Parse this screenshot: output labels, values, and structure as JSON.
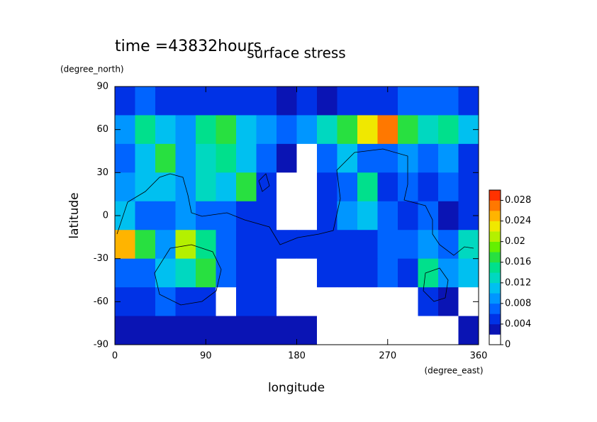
{
  "chart_data": {
    "type": "contour",
    "title": "surface stress",
    "subtitle": "time =43832hours",
    "x_label": "longitude",
    "x_unit": "(degree_east)",
    "y_label": "latitude",
    "y_unit": "(degree_north)",
    "xlim": [
      0,
      360
    ],
    "xticks": [
      0,
      90,
      180,
      270,
      360
    ],
    "ylim": [
      -90,
      90
    ],
    "yticks": [
      -90,
      -60,
      -30,
      0,
      30,
      60,
      90
    ],
    "x": [
      10,
      30,
      50,
      70,
      90,
      110,
      130,
      150,
      170,
      190,
      210,
      230,
      250,
      270,
      290,
      310,
      330,
      350
    ],
    "y": [
      80,
      60,
      40,
      20,
      0,
      -20,
      -40,
      -60,
      -80
    ],
    "z": [
      [
        0.005,
        0.006,
        0.005,
        0.005,
        0.004,
        0.005,
        0.004,
        0.004,
        0.003,
        0.004,
        0.003,
        0.004,
        0.005,
        0.005,
        0.006,
        0.006,
        0.006,
        0.005
      ],
      [
        0.008,
        0.014,
        0.01,
        0.008,
        0.014,
        0.016,
        0.01,
        0.008,
        0.006,
        0.008,
        0.012,
        0.016,
        0.022,
        0.026,
        0.016,
        0.012,
        0.014,
        0.01
      ],
      [
        0.006,
        0.01,
        0.016,
        0.008,
        0.012,
        0.014,
        0.01,
        0.006,
        0.003,
        0.001,
        0.006,
        0.01,
        0.006,
        0.006,
        0.008,
        0.006,
        0.008,
        0.005
      ],
      [
        0.008,
        0.01,
        0.01,
        0.008,
        0.012,
        0.01,
        0.016,
        0.004,
        0.001,
        0.001,
        0.004,
        0.006,
        0.014,
        0.004,
        0.006,
        0.004,
        0.006,
        0.004
      ],
      [
        0.01,
        0.006,
        0.006,
        0.008,
        0.006,
        0.006,
        0.004,
        0.004,
        0.001,
        0.001,
        0.004,
        0.008,
        0.01,
        0.006,
        0.004,
        0.006,
        0.002,
        0.004
      ],
      [
        0.024,
        0.016,
        0.008,
        0.02,
        0.014,
        0.006,
        0.004,
        0.004,
        0.004,
        0.004,
        0.004,
        0.004,
        0.004,
        0.006,
        0.006,
        0.008,
        0.006,
        0.012
      ],
      [
        0.006,
        0.006,
        0.01,
        0.012,
        0.016,
        0.006,
        0.004,
        0.004,
        0.001,
        0.001,
        0.004,
        0.004,
        0.004,
        0.006,
        0.004,
        0.014,
        0.008,
        0.01
      ],
      [
        0.005,
        0.004,
        0.006,
        0.004,
        0.004,
        0.001,
        0.004,
        0.004,
        0.001,
        0.001,
        0.001,
        0.001,
        0.001,
        0.001,
        0.001,
        0.004,
        0.003,
        0.001
      ],
      [
        0.003,
        0.003,
        0.003,
        0.003,
        0.003,
        0.003,
        0.003,
        0.003,
        0.003,
        0.003,
        0.001,
        0.001,
        0.001,
        0.001,
        0.001,
        0.001,
        0.001,
        0.003
      ]
    ],
    "clim": [
      0,
      0.03
    ],
    "cticks": [
      0,
      0.004,
      0.008,
      0.012,
      0.016,
      0.02,
      0.024,
      0.028
    ],
    "colors": [
      "#ffffff",
      "#0a14b4",
      "#0032e6",
      "#0064ff",
      "#0096ff",
      "#00c0f0",
      "#00d8c0",
      "#00e08c",
      "#28e040",
      "#64f000",
      "#b4f000",
      "#f0e800",
      "#ffb400",
      "#ff7800",
      "#ff3200"
    ]
  }
}
